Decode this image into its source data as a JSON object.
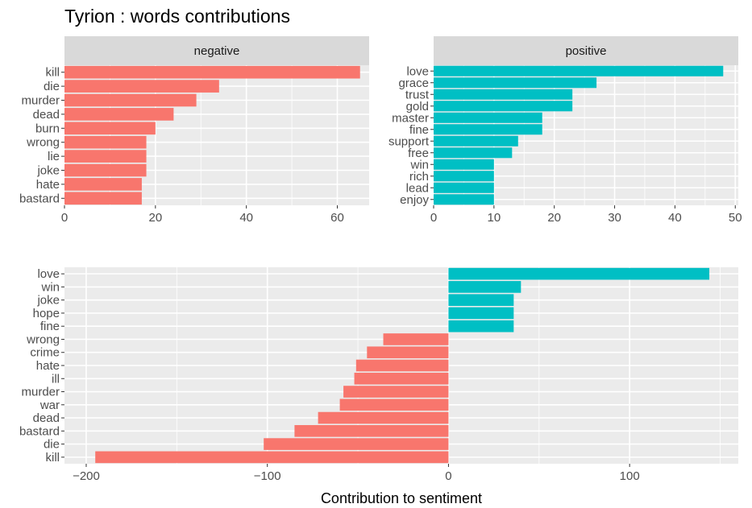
{
  "title": "Tyrion : words contributions",
  "colors": {
    "negative": "#F8766D",
    "positive": "#00BFC4",
    "panel_bg": "#EBEBEB",
    "strip_bg": "#D9D9D9",
    "grid": "#FFFFFF"
  },
  "chart_data": [
    {
      "type": "bar",
      "orientation": "horizontal",
      "facet": "negative",
      "categories": [
        "kill",
        "die",
        "murder",
        "dead",
        "burn",
        "wrong",
        "lie",
        "joke",
        "hate",
        "bastard"
      ],
      "values": [
        65,
        34,
        29,
        24,
        20,
        18,
        18,
        18,
        17,
        17
      ],
      "xlim": [
        0,
        67
      ],
      "xticks": [
        0,
        20,
        40,
        60
      ],
      "color": "#F8766D"
    },
    {
      "type": "bar",
      "orientation": "horizontal",
      "facet": "positive",
      "categories": [
        "love",
        "grace",
        "trust",
        "gold",
        "master",
        "fine",
        "support",
        "free",
        "win",
        "rich",
        "lead",
        "enjoy"
      ],
      "values": [
        48,
        27,
        23,
        23,
        18,
        18,
        14,
        13,
        10,
        10,
        10,
        10
      ],
      "xlim": [
        0,
        50.5
      ],
      "xticks": [
        0,
        10,
        20,
        30,
        40,
        50
      ],
      "color": "#00BFC4"
    },
    {
      "type": "bar",
      "orientation": "horizontal",
      "categories": [
        "love",
        "win",
        "joke",
        "hope",
        "fine",
        "wrong",
        "crime",
        "hate",
        "ill",
        "murder",
        "war",
        "dead",
        "bastard",
        "die",
        "kill"
      ],
      "values": [
        144,
        40,
        36,
        36,
        36,
        -36,
        -45,
        -51,
        -52,
        -58,
        -60,
        -72,
        -85,
        -102,
        -195
      ],
      "xlim": [
        -212,
        160
      ],
      "xticks": [
        -200,
        -100,
        0,
        100
      ],
      "xtick_labels": [
        "−200",
        "−100",
        "0",
        "100"
      ],
      "xlabel": "Contribution to sentiment"
    }
  ]
}
